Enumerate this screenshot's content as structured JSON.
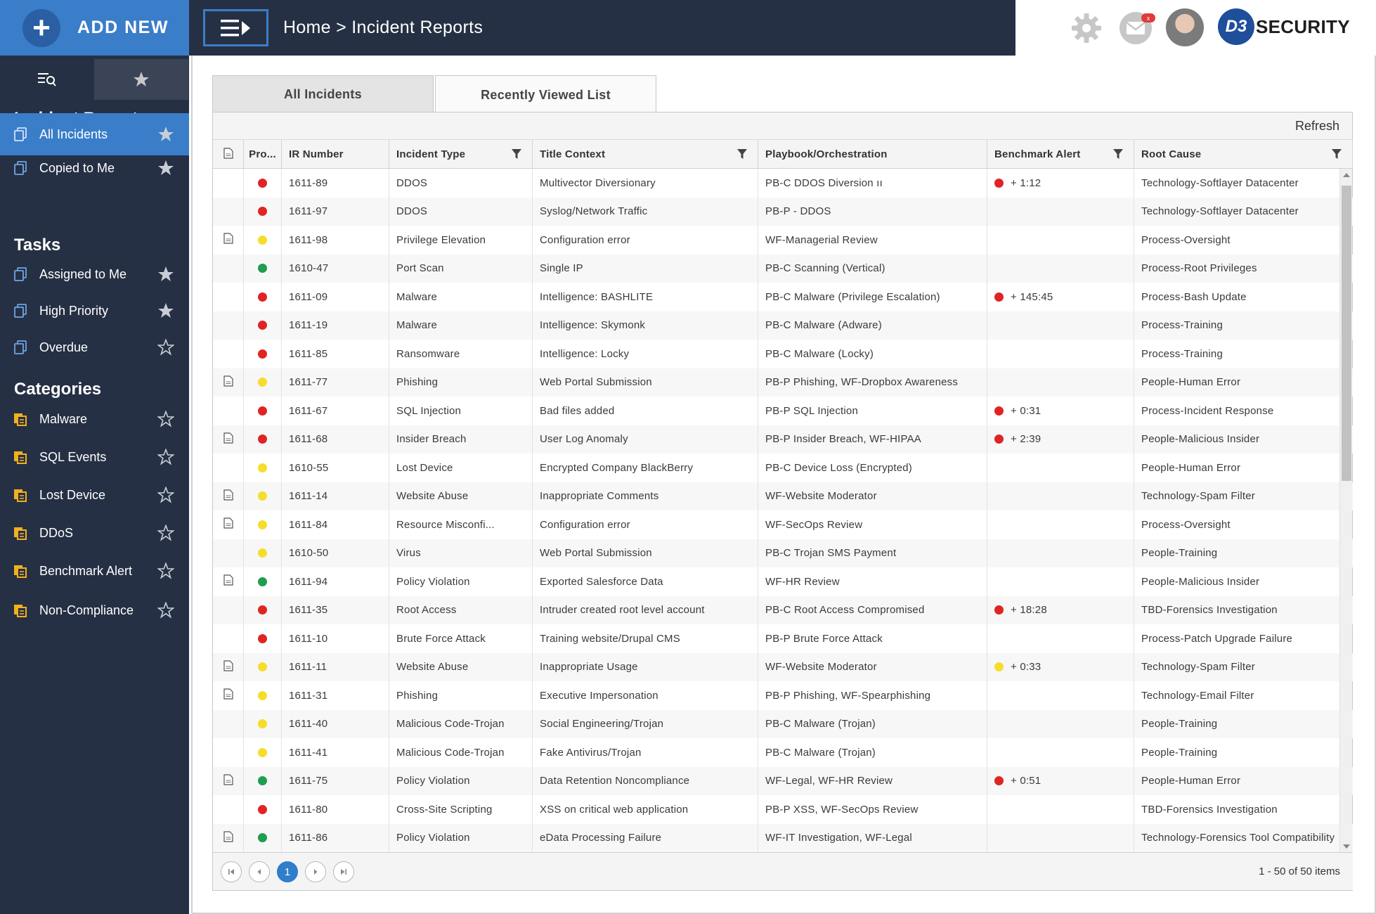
{
  "header": {
    "add_new": "ADD NEW",
    "breadcrumb_home": "Home",
    "breadcrumb_sep": " > ",
    "breadcrumb_current": "Incident Reports",
    "mail_badge": "x",
    "logo_mark": "D3",
    "logo_text": "SECURITY"
  },
  "sidebar": {
    "title": "Incident Reports",
    "items": [
      {
        "label": "All Incidents",
        "icon": "copy-icon",
        "starred": true,
        "active": true
      },
      {
        "label": "Copied to Me",
        "icon": "copy-icon",
        "starred": true
      }
    ],
    "tasks_heading": "Tasks",
    "tasks": [
      {
        "label": "Assigned to Me",
        "icon": "copy-icon",
        "starred": true
      },
      {
        "label": "High Priority",
        "icon": "copy-icon",
        "starred": true
      },
      {
        "label": "Overdue",
        "icon": "copy-icon",
        "starred": false
      }
    ],
    "categories_heading": "Categories",
    "categories": [
      {
        "label": "Malware",
        "icon": "folder-icon",
        "starred": false
      },
      {
        "label": "SQL Events",
        "icon": "folder-icon",
        "starred": false
      },
      {
        "label": "Lost Device",
        "icon": "folder-icon",
        "starred": false
      },
      {
        "label": "DDoS",
        "icon": "folder-icon",
        "starred": false
      },
      {
        "label": "Benchmark Alert",
        "icon": "folder-icon",
        "starred": false
      },
      {
        "label": "Non-Compliance",
        "icon": "folder-icon",
        "starred": false
      }
    ]
  },
  "tabs": [
    "All Incidents",
    "Recently Viewed List"
  ],
  "active_tab": "Recently Viewed List",
  "toolbar": {
    "refresh": "Refresh"
  },
  "colors": {
    "red": "#e02424",
    "yellow": "#f5de2a",
    "green": "#1e9e4e",
    "accent": "#3a7dc9"
  },
  "table": {
    "columns": [
      "",
      "Pro...",
      "IR Number",
      "Incident Type",
      "Title Context",
      "Playbook/Orchestration",
      "Benchmark Alert",
      "Root Cause"
    ],
    "rows": [
      {
        "doc": false,
        "priority": "red",
        "ir": "1611-89",
        "type": "DDOS",
        "title": "Multivector Diversionary",
        "playbook": "PB-C DDOS Diversion ıı",
        "bench_color": "red",
        "bench": "+ 1:12",
        "root": "Technology-Softlayer Datacenter"
      },
      {
        "doc": false,
        "priority": "red",
        "ir": "1611-97",
        "type": "DDOS",
        "title": "Syslog/Network Traffic",
        "playbook": "PB-P - DDOS",
        "bench_color": "",
        "bench": "",
        "root": "Technology-Softlayer Datacenter"
      },
      {
        "doc": true,
        "priority": "yellow",
        "ir": "1611-98",
        "type": "Privilege Elevation",
        "title": "Configuration error",
        "playbook": "WF-Managerial Review",
        "bench_color": "",
        "bench": "",
        "root": "Process-Oversight"
      },
      {
        "doc": false,
        "priority": "green",
        "ir": "1610-47",
        "type": "Port Scan",
        "title": "Single IP",
        "playbook": "PB-C Scanning (Vertical)",
        "bench_color": "",
        "bench": "",
        "root": "Process-Root Privileges"
      },
      {
        "doc": false,
        "priority": "red",
        "ir": "1611-09",
        "type": "Malware",
        "title": "Intelligence: BASHLITE",
        "playbook": "PB-C Malware (Privilege Escalation)",
        "bench_color": "red",
        "bench": "+ 145:45",
        "root": "Process-Bash Update"
      },
      {
        "doc": false,
        "priority": "red",
        "ir": "1611-19",
        "type": "Malware",
        "title": "Intelligence: Skymonk",
        "playbook": "PB-C Malware (Adware)",
        "bench_color": "",
        "bench": "",
        "root": "Process-Training"
      },
      {
        "doc": false,
        "priority": "red",
        "ir": "1611-85",
        "type": "Ransomware",
        "title": "Intelligence: Locky",
        "playbook": "PB-C Malware (Locky)",
        "bench_color": "",
        "bench": "",
        "root": "Process-Training"
      },
      {
        "doc": true,
        "priority": "yellow",
        "ir": "1611-77",
        "type": "Phishing",
        "title": "Web Portal Submission",
        "playbook": "PB-P Phishing, WF-Dropbox Awareness",
        "bench_color": "",
        "bench": "",
        "root": "People-Human Error"
      },
      {
        "doc": false,
        "priority": "red",
        "ir": "1611-67",
        "type": "SQL Injection",
        "title": "Bad files added",
        "playbook": "PB-P SQL Injection",
        "bench_color": "red",
        "bench": "+ 0:31",
        "root": "Process-Incident Response"
      },
      {
        "doc": true,
        "priority": "red",
        "ir": "1611-68",
        "type": "Insider Breach",
        "title": "User Log Anomaly",
        "playbook": "PB-P Insider Breach, WF-HIPAA",
        "bench_color": "red",
        "bench": "+ 2:39",
        "root": "People-Malicious Insider"
      },
      {
        "doc": false,
        "priority": "yellow",
        "ir": "1610-55",
        "type": "Lost Device",
        "title": "Encrypted Company BlackBerry",
        "playbook": "PB-C Device Loss (Encrypted)",
        "bench_color": "",
        "bench": "",
        "root": "People-Human Error"
      },
      {
        "doc": true,
        "priority": "yellow",
        "ir": "1611-14",
        "type": "Website Abuse",
        "title": "Inappropriate Comments",
        "playbook": "WF-Website Moderator",
        "bench_color": "",
        "bench": "",
        "root": "Technology-Spam Filter"
      },
      {
        "doc": true,
        "priority": "yellow",
        "ir": "1611-84",
        "type": "Resource Misconfi...",
        "title": "Configuration error",
        "playbook": "WF-SecOps Review",
        "bench_color": "",
        "bench": "",
        "root": "Process-Oversight"
      },
      {
        "doc": false,
        "priority": "yellow",
        "ir": "1610-50",
        "type": "Virus",
        "title": "Web Portal Submission",
        "playbook": "PB-C Trojan SMS Payment",
        "bench_color": "",
        "bench": "",
        "root": "People-Training"
      },
      {
        "doc": true,
        "priority": "green",
        "ir": "1611-94",
        "type": "Policy Violation",
        "title": "Exported Salesforce Data",
        "playbook": "WF-HR Review",
        "bench_color": "",
        "bench": "",
        "root": "People-Malicious Insider"
      },
      {
        "doc": false,
        "priority": "red",
        "ir": "1611-35",
        "type": "Root Access",
        "title": "Intruder created root level account",
        "playbook": "PB-C Root Access Compromised",
        "bench_color": "red",
        "bench": "+ 18:28",
        "root": "TBD-Forensics Investigation"
      },
      {
        "doc": false,
        "priority": "red",
        "ir": "1611-10",
        "type": "Brute Force Attack",
        "title": "Training website/Drupal CMS",
        "playbook": "PB-P Brute Force Attack",
        "bench_color": "",
        "bench": "",
        "root": "Process-Patch Upgrade Failure"
      },
      {
        "doc": true,
        "priority": "yellow",
        "ir": "1611-11",
        "type": "Website Abuse",
        "title": "Inappropriate Usage",
        "playbook": "WF-Website Moderator",
        "bench_color": "yellow",
        "bench": "+ 0:33",
        "root": "Technology-Spam Filter"
      },
      {
        "doc": true,
        "priority": "yellow",
        "ir": "1611-31",
        "type": "Phishing",
        "title": "Executive Impersonation",
        "playbook": "PB-P Phishing, WF-Spearphishing",
        "bench_color": "",
        "bench": "",
        "root": "Technology-Email Filter"
      },
      {
        "doc": false,
        "priority": "yellow",
        "ir": "1611-40",
        "type": "Malicious Code-Trojan",
        "title": "Social Engineering/Trojan",
        "playbook": "PB-C Malware (Trojan)",
        "bench_color": "",
        "bench": "",
        "root": "People-Training"
      },
      {
        "doc": false,
        "priority": "yellow",
        "ir": "1611-41",
        "type": "Malicious Code-Trojan",
        "title": "Fake Antivirus/Trojan",
        "playbook": "PB-C Malware (Trojan)",
        "bench_color": "",
        "bench": "",
        "root": "People-Training"
      },
      {
        "doc": true,
        "priority": "green",
        "ir": "1611-75",
        "type": "Policy Violation",
        "title": "Data Retention Noncompliance",
        "playbook": "WF-Legal, WF-HR Review",
        "bench_color": "red",
        "bench": "+ 0:51",
        "root": "People-Human Error"
      },
      {
        "doc": false,
        "priority": "red",
        "ir": "1611-80",
        "type": "Cross-Site Scripting",
        "title": "XSS on critical web application",
        "playbook": "PB-P XSS, WF-SecOps Review",
        "bench_color": "",
        "bench": "",
        "root": "TBD-Forensics Investigation"
      },
      {
        "doc": true,
        "priority": "green",
        "ir": "1611-86",
        "type": "Policy Violation",
        "title": "eData Processing Failure",
        "playbook": "WF-IT Investigation, WF-Legal",
        "bench_color": "",
        "bench": "",
        "root": "Technology-Forensics Tool Compatibility"
      }
    ]
  },
  "pager": {
    "current_page": "1",
    "info": "1 - 50 of 50 items"
  }
}
